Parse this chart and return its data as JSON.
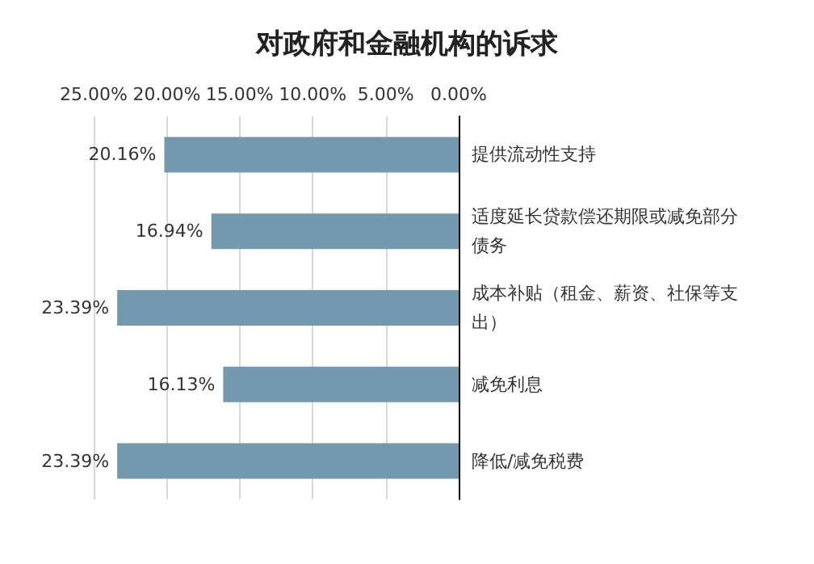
{
  "chart_data": {
    "type": "bar",
    "orientation": "horizontal",
    "title": "对政府和金融机构的诉求",
    "categories": [
      "提供流动性支持",
      "适度延长贷款偿还期限或减免部分债务",
      "成本补贴（租金、薪资、社保等支出）",
      "减免利息",
      "降低/减免税费"
    ],
    "values": [
      20.16,
      16.94,
      23.39,
      16.13,
      23.39
    ],
    "value_labels": [
      "20.16%",
      "16.94%",
      "23.39%",
      "16.13%",
      "23.39%"
    ],
    "color": "#7399ae",
    "xlim": [
      25,
      0
    ],
    "xticks": [
      {
        "value": 0,
        "label": "0.00%"
      },
      {
        "value": 5,
        "label": "5.00%"
      },
      {
        "value": 10,
        "label": "10.00%"
      },
      {
        "value": 15,
        "label": "15.00%"
      },
      {
        "value": 20,
        "label": "20.00%"
      },
      {
        "value": 25,
        "label": "25.00%"
      }
    ],
    "grid": "x"
  }
}
